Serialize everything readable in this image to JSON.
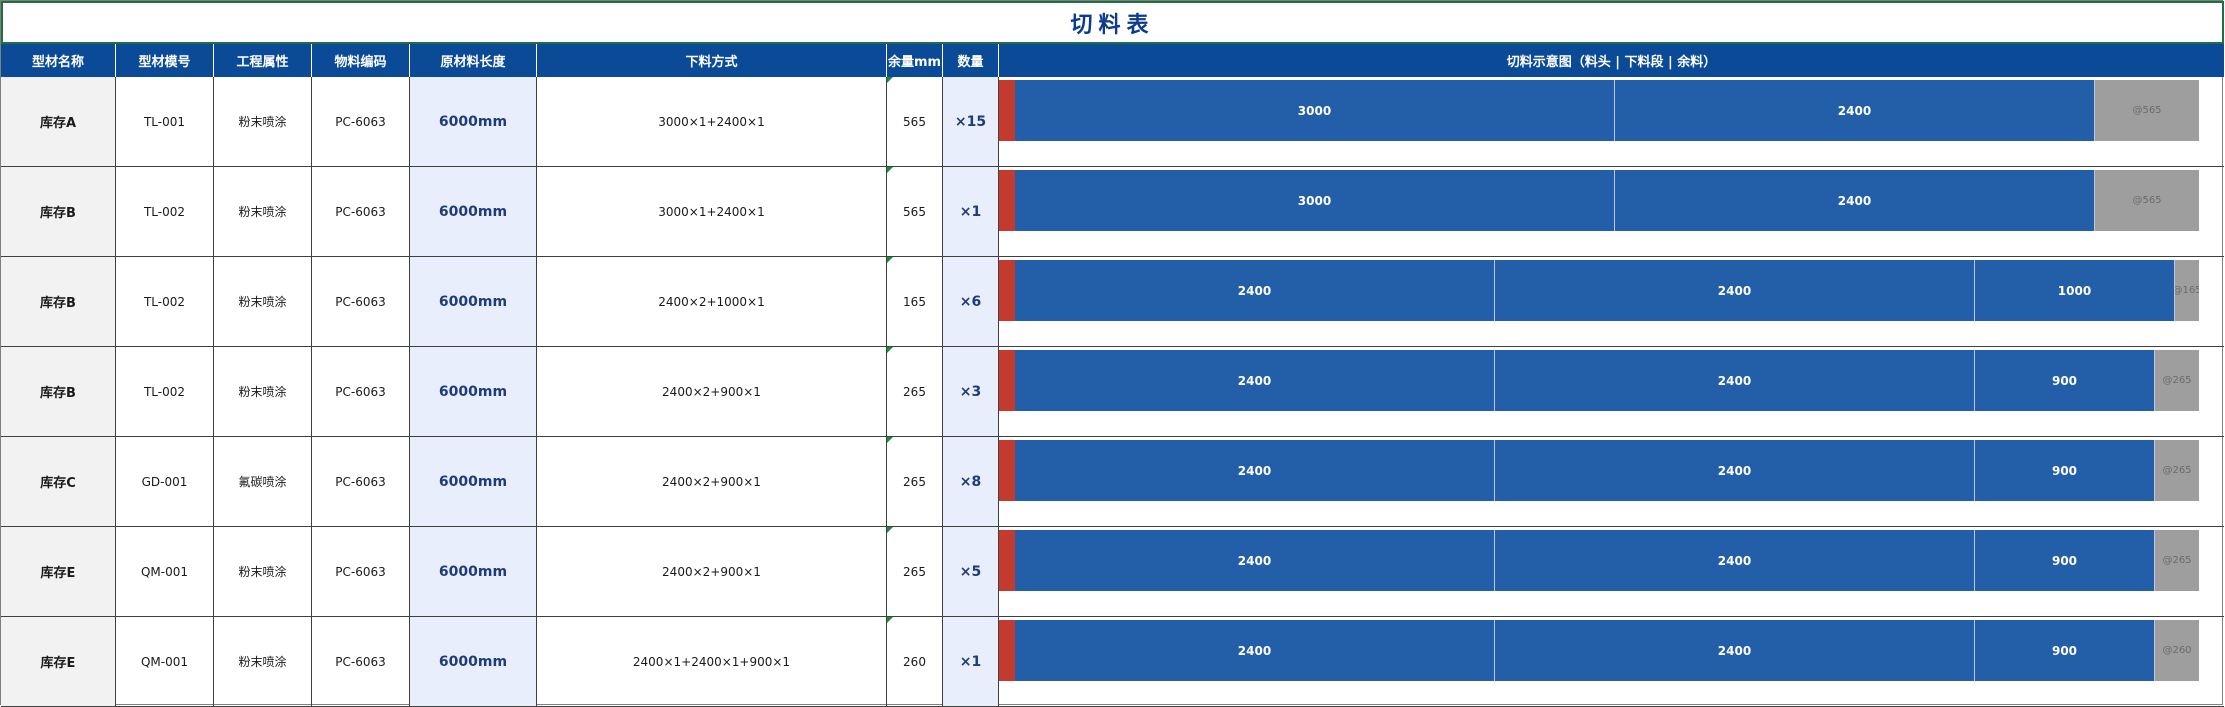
{
  "title": "切料表",
  "headers": [
    "型材名称",
    "型材模号",
    "工程属性",
    "物料编码",
    "原材料长度",
    "下料方式",
    "余量mm",
    "数量",
    "切料示意图（料头 | 下料段 | 余料）"
  ],
  "colors": {
    "header_bg": "#0a4a97",
    "piece": "#235ea8",
    "head": "#c23b2e",
    "rest": "#9e9e9e",
    "title": "#0b3b8c"
  },
  "rows": [
    {
      "name": "库存A",
      "model": "TL-001",
      "attr": "粉末喷涂",
      "code": "PC-6063",
      "length": "6000mm",
      "method": "3000×1+2400×1",
      "remain": "565",
      "qty": "×15",
      "pieces": [
        3000,
        2400
      ],
      "remainder": 565,
      "rest_label": "@565"
    },
    {
      "name": "库存B",
      "model": "TL-002",
      "attr": "粉末喷涂",
      "code": "PC-6063",
      "length": "6000mm",
      "method": "3000×1+2400×1",
      "remain": "565",
      "qty": "×1",
      "pieces": [
        3000,
        2400
      ],
      "remainder": 565,
      "rest_label": "@565"
    },
    {
      "name": "库存B",
      "model": "TL-002",
      "attr": "粉末喷涂",
      "code": "PC-6063",
      "length": "6000mm",
      "method": "2400×2+1000×1",
      "remain": "165",
      "qty": "×6",
      "pieces": [
        2400,
        2400,
        1000
      ],
      "remainder": 165,
      "rest_label": "@165"
    },
    {
      "name": "库存B",
      "model": "TL-002",
      "attr": "粉末喷涂",
      "code": "PC-6063",
      "length": "6000mm",
      "method": "2400×2+900×1",
      "remain": "265",
      "qty": "×3",
      "pieces": [
        2400,
        2400,
        900
      ],
      "remainder": 265,
      "rest_label": "@265"
    },
    {
      "name": "库存C",
      "model": "GD-001",
      "attr": "氟碳喷涂",
      "code": "PC-6063",
      "length": "6000mm",
      "method": "2400×2+900×1",
      "remain": "265",
      "qty": "×8",
      "pieces": [
        2400,
        2400,
        900
      ],
      "remainder": 265,
      "rest_label": "@265"
    },
    {
      "name": "库存E",
      "model": "QM-001",
      "attr": "粉末喷涂",
      "code": "PC-6063",
      "length": "6000mm",
      "method": "2400×2+900×1",
      "remain": "265",
      "qty": "×5",
      "pieces": [
        2400,
        2400,
        900
      ],
      "remainder": 265,
      "rest_label": "@265"
    },
    {
      "name": "库存E",
      "model": "QM-001",
      "attr": "粉末喷涂",
      "code": "PC-6063",
      "length": "6000mm",
      "method": "2400×1+2400×1+900×1",
      "remain": "260",
      "qty": "×1",
      "pieces": [
        2400,
        2400,
        900
      ],
      "remainder": 260,
      "rest_label": "@260"
    }
  ]
}
